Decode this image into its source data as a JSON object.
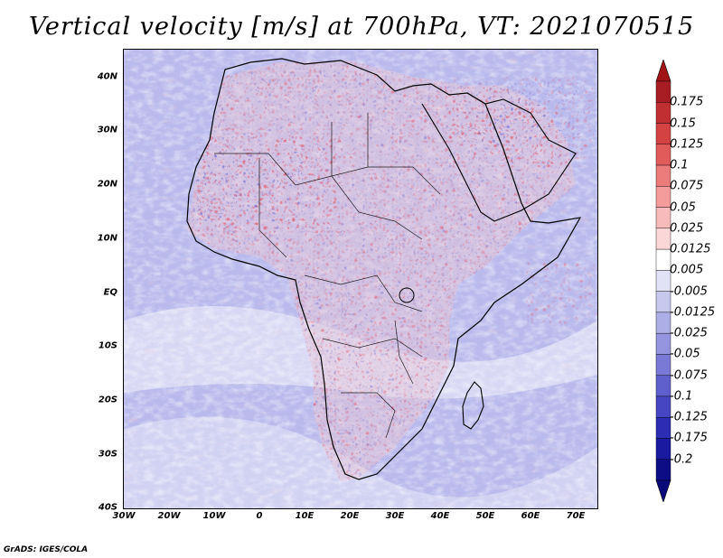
{
  "title": "Vertical velocity [m/s] at 700hPa, VT: 2021070515",
  "credit": "GrADS: IGES/COLA",
  "map": {
    "region": "Africa",
    "variable": "Vertical velocity",
    "units": "m/s",
    "level": "700hPa",
    "valid_time": "2021070515",
    "lat_labels": [
      "40N",
      "30N",
      "20N",
      "10N",
      "EQ",
      "10S",
      "20S",
      "30S",
      "40S"
    ],
    "lon_labels": [
      "30W",
      "20W",
      "10W",
      "0",
      "10E",
      "20E",
      "30E",
      "40E",
      "50E",
      "60E",
      "70E"
    ],
    "lat_range": [
      -40,
      45
    ],
    "lon_range": [
      -30,
      75
    ]
  },
  "colorbar": {
    "labels": [
      "0.175",
      "0.15",
      "0.125",
      "0.1",
      "0.075",
      "0.05",
      "0.025",
      "0.0125",
      "0.005",
      "-0.005",
      "-0.0125",
      "-0.025",
      "-0.05",
      "-0.075",
      "-0.1",
      "-0.125",
      "-0.175",
      "-0.2"
    ],
    "colors": [
      "#a81d24",
      "#c22f33",
      "#d54244",
      "#e25b5b",
      "#ec7b7b",
      "#f49b9b",
      "#f8bbbb",
      "#fbd7d7",
      "#ffffff",
      "#e2e2f6",
      "#c8c8ef",
      "#aeaee7",
      "#9494df",
      "#7a7ad6",
      "#6060cd",
      "#4646c2",
      "#2c2cb5",
      "#1a1aa0",
      "#0d0d86"
    ],
    "top_arrow_color": "#a01418",
    "bottom_arrow_color": "#0a0a78"
  }
}
